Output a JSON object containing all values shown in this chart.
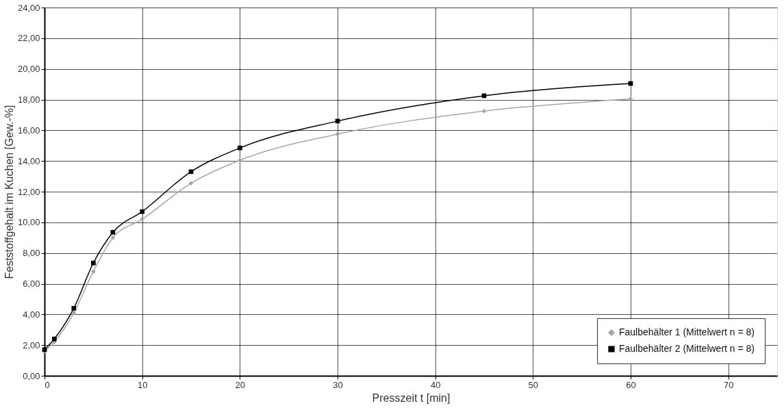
{
  "chart_data": {
    "type": "line",
    "xlabel": "Presszeit t [min]",
    "ylabel": "Feststoffgehalt im Kuchen [Gew.-%]",
    "x": [
      0,
      1,
      3,
      5,
      7,
      10,
      15,
      20,
      30,
      45,
      60
    ],
    "series": [
      {
        "name": "Faulbehälter 1 (Mittelwert n = 8)",
        "color": "#a6a6a6",
        "marker": "diamond",
        "values": [
          1.6,
          2.2,
          4.1,
          6.8,
          9.0,
          10.2,
          12.55,
          14.05,
          15.75,
          17.25,
          18.05
        ]
      },
      {
        "name": "Faulbehälter 2 (Mittelwert n = 8)",
        "color": "#000000",
        "marker": "square",
        "values": [
          1.7,
          2.4,
          4.4,
          7.35,
          9.35,
          10.7,
          13.3,
          14.85,
          16.6,
          18.25,
          19.05
        ]
      }
    ],
    "xlim": [
      0,
      75
    ],
    "xticks": [
      0,
      10,
      20,
      30,
      40,
      50,
      60,
      70
    ],
    "ylim": [
      0,
      24
    ],
    "yticks": [
      {
        "value": 0,
        "label": "0,00"
      },
      {
        "value": 2,
        "label": "2,00"
      },
      {
        "value": 4,
        "label": "4,00"
      },
      {
        "value": 6,
        "label": "6,00"
      },
      {
        "value": 8,
        "label": "8,00"
      },
      {
        "value": 10,
        "label": "10,00"
      },
      {
        "value": 12,
        "label": "12,00"
      },
      {
        "value": 14,
        "label": "14,00"
      },
      {
        "value": 16,
        "label": "16,00"
      },
      {
        "value": 18,
        "label": "18,00"
      },
      {
        "value": 20,
        "label": "20,00"
      },
      {
        "value": 22,
        "label": "22,00"
      },
      {
        "value": 24,
        "label": "24,00"
      }
    ],
    "grid": true,
    "legend": "bottom right",
    "line_style": "solid"
  }
}
